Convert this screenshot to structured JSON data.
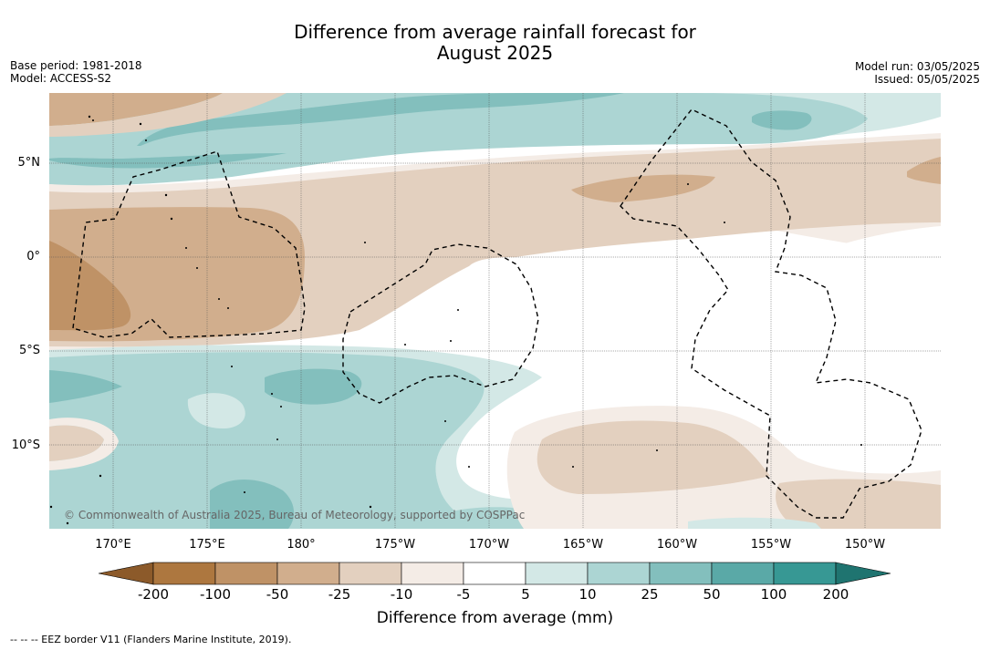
{
  "title_line1": "Difference from average rainfall forecast for",
  "title_line2": "August 2025",
  "base_period": "Base period: 1981-2018",
  "model": "Model: ACCESS-S2",
  "model_run": "Model run: 03/05/2025",
  "issued": "Issued: 05/05/2025",
  "lat_labels": [
    "5°N",
    "0°",
    "5°S",
    "10°S"
  ],
  "lon_labels": [
    "170°E",
    "175°E",
    "180°",
    "175°W",
    "170°W",
    "165°W",
    "160°W",
    "155°W",
    "150°W"
  ],
  "copyright": "© Commonwealth of Australia 2025, Bureau of Meteorology, supported by COSPPac",
  "colorbar": {
    "labels": [
      "-200",
      "-100",
      "-50",
      "-25",
      "-10",
      "-5",
      "5",
      "10",
      "25",
      "50",
      "100",
      "200"
    ],
    "colors": [
      "#8c5a2a",
      "#ad773f",
      "#bf9266",
      "#d1ae8d",
      "#e3d0bf",
      "#f4ece6",
      "#ffffff",
      "#d3e8e6",
      "#acd5d3",
      "#83bfbd",
      "#5aa9a7",
      "#379894",
      "#1f7470"
    ],
    "title": "Difference from average (mm)"
  },
  "legend_footnote": "--  --  -- EEZ border V11 (Flanders Marine Institute, 2019)."
}
